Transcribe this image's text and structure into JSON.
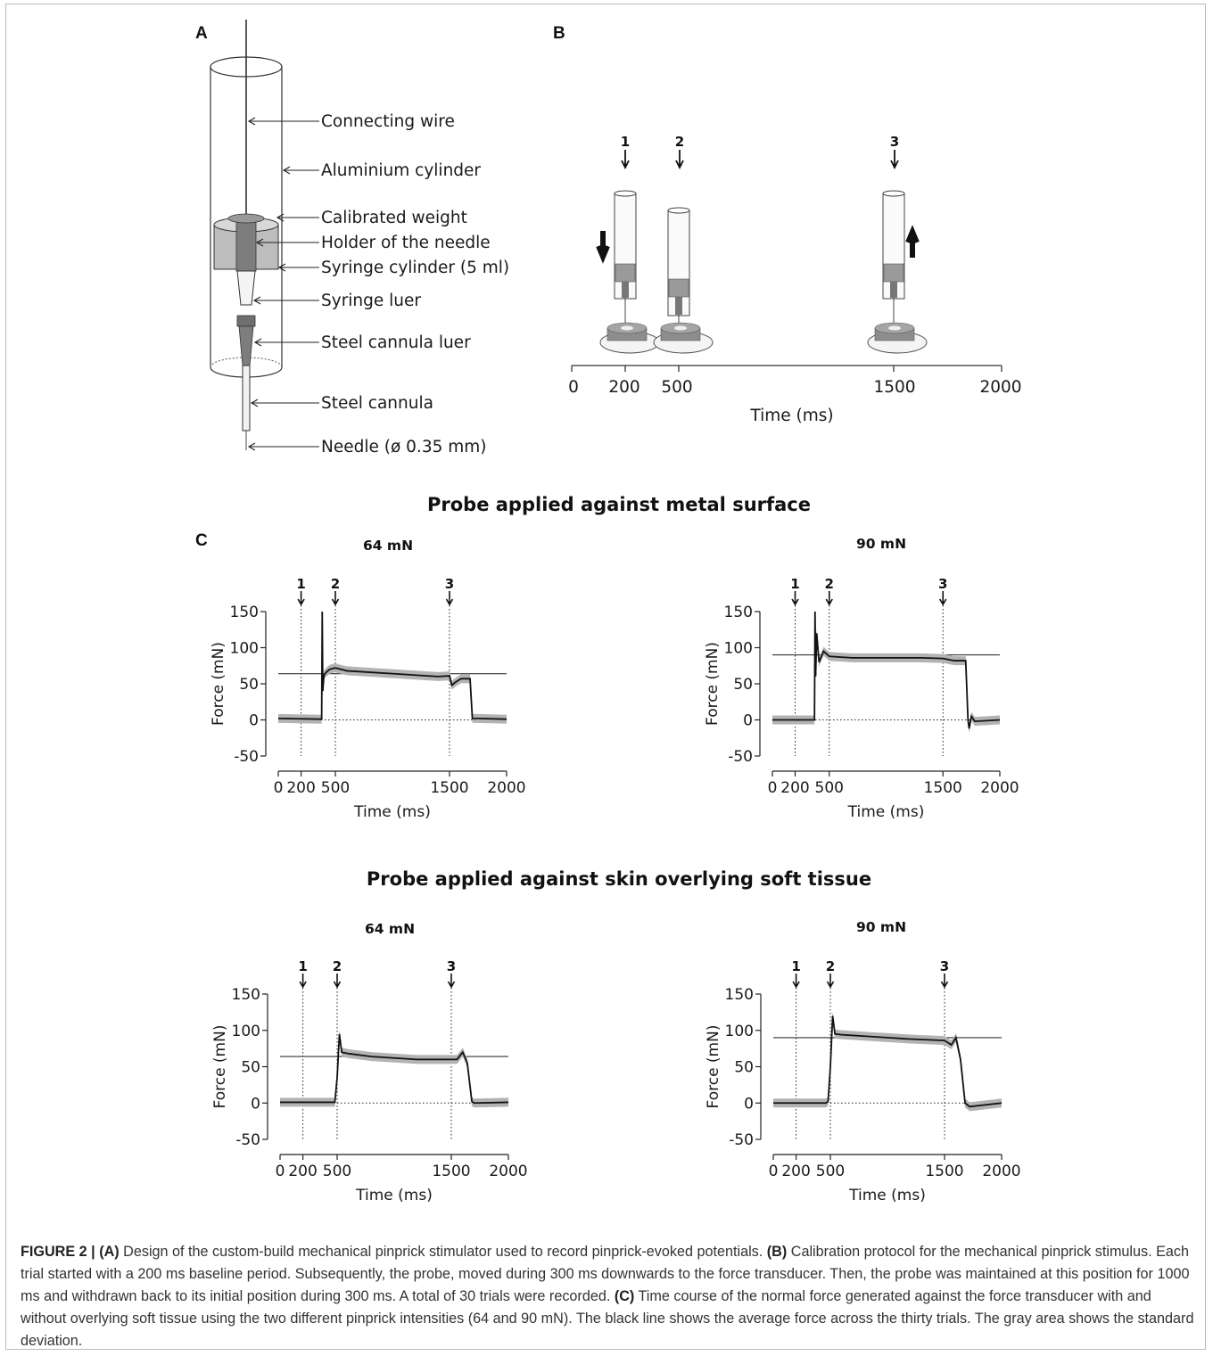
{
  "panels": {
    "a": "A",
    "b": "B",
    "c": "C"
  },
  "stimulator_labels": [
    "Connecting wire",
    "Aluminium cylinder",
    "Calibrated weight",
    "Holder of the needle",
    "Syringe cylinder (5 ml)",
    "Syringe luer",
    "Steel cannula luer",
    "Steel cannula",
    "Needle (ø 0.35 mm)"
  ],
  "protocol": {
    "events": [
      "1",
      "2",
      "3"
    ],
    "ticks": [
      "0",
      "200",
      "500",
      "1500",
      "2000"
    ],
    "xlabel": "Time (ms)"
  },
  "section_titles": {
    "metal": "Probe applied against metal surface",
    "skin": "Probe applied against skin overlying soft tissue"
  },
  "chart_data": [
    {
      "type": "line",
      "condition": "metal surface",
      "title": "64 mN",
      "xlabel": "Time (ms)",
      "ylabel": "Force (mN)",
      "xlim": [
        0,
        2000
      ],
      "ylim": [
        -50,
        150
      ],
      "xticks": [
        "0",
        "200",
        "500",
        "1500",
        "2000"
      ],
      "yticks": [
        "150",
        "100",
        "50",
        "0",
        "-50"
      ],
      "target_force": 64,
      "events": [
        {
          "label": "1",
          "x": 200
        },
        {
          "label": "2",
          "x": 500
        },
        {
          "label": "3",
          "x": 1500
        }
      ],
      "x": [
        0,
        380,
        385,
        390,
        400,
        420,
        450,
        500,
        600,
        800,
        1000,
        1200,
        1400,
        1500,
        1520,
        1550,
        1600,
        1680,
        1700,
        1750,
        2000
      ],
      "y": [
        2,
        1,
        150,
        40,
        62,
        66,
        70,
        72,
        68,
        66,
        64,
        62,
        60,
        61,
        48,
        52,
        57,
        57,
        2,
        2,
        1
      ]
    },
    {
      "type": "line",
      "condition": "metal surface",
      "title": "90 mN",
      "xlabel": "Time (ms)",
      "ylabel": "Force (mN)",
      "xlim": [
        0,
        2000
      ],
      "ylim": [
        -50,
        150
      ],
      "xticks": [
        "0",
        "200",
        "500",
        "1500",
        "2000"
      ],
      "yticks": [
        "150",
        "100",
        "50",
        "0",
        "-50"
      ],
      "target_force": 90,
      "events": [
        {
          "label": "1",
          "x": 200
        },
        {
          "label": "2",
          "x": 500
        },
        {
          "label": "3",
          "x": 1500
        }
      ],
      "x": [
        0,
        370,
        375,
        380,
        390,
        410,
        450,
        500,
        700,
        1000,
        1300,
        1500,
        1600,
        1700,
        1720,
        1730,
        1750,
        1780,
        2000
      ],
      "y": [
        0,
        0,
        150,
        60,
        120,
        80,
        95,
        88,
        86,
        86,
        86,
        85,
        82,
        82,
        0,
        -12,
        5,
        -2,
        0
      ]
    },
    {
      "type": "line",
      "condition": "skin overlying soft tissue",
      "title": "64 mN",
      "xlabel": "Time (ms)",
      "ylabel": "Force (mN)",
      "xlim": [
        0,
        2000
      ],
      "ylim": [
        -50,
        150
      ],
      "xticks": [
        "0",
        "200",
        "500",
        "1500",
        "2000"
      ],
      "yticks": [
        "150",
        "100",
        "50",
        "0",
        "-50"
      ],
      "target_force": 64,
      "events": [
        {
          "label": "1",
          "x": 200
        },
        {
          "label": "2",
          "x": 500
        },
        {
          "label": "3",
          "x": 1500
        }
      ],
      "x": [
        0,
        480,
        500,
        520,
        540,
        600,
        800,
        1000,
        1200,
        1500,
        1550,
        1600,
        1640,
        1680,
        1700,
        2000
      ],
      "y": [
        1,
        1,
        35,
        95,
        70,
        68,
        64,
        62,
        60,
        60,
        60,
        70,
        55,
        2,
        0,
        1
      ]
    },
    {
      "type": "line",
      "condition": "skin overlying soft tissue",
      "title": "90 mN",
      "xlabel": "Time (ms)",
      "ylabel": "Force (mN)",
      "xlim": [
        0,
        2000
      ],
      "ylim": [
        -50,
        150
      ],
      "xticks": [
        "0",
        "200",
        "500",
        "1500",
        "2000"
      ],
      "yticks": [
        "150",
        "100",
        "50",
        "0",
        "-50"
      ],
      "target_force": 90,
      "events": [
        {
          "label": "1",
          "x": 200
        },
        {
          "label": "2",
          "x": 500
        },
        {
          "label": "3",
          "x": 1500
        }
      ],
      "x": [
        0,
        460,
        480,
        500,
        520,
        540,
        600,
        800,
        1000,
        1200,
        1500,
        1560,
        1600,
        1640,
        1680,
        1720,
        2000
      ],
      "y": [
        0,
        0,
        2,
        50,
        120,
        95,
        94,
        92,
        90,
        88,
        86,
        80,
        90,
        60,
        0,
        -5,
        0
      ]
    }
  ],
  "caption": {
    "figure_label": "FIGURE 2 |",
    "a_label": "(A)",
    "a_text": " Design of the custom-build mechanical pinprick stimulator used to record pinprick-evoked potentials. ",
    "b_label": "(B)",
    "b_text": " Calibration protocol for the mechanical pinprick stimulus. Each trial started with a 200 ms baseline period. Subsequently, the probe, moved during 300 ms downwards to the force transducer. Then, the probe was maintained at this position for 1000 ms and withdrawn back to its initial position during 300 ms. A total of 30 trials were recorded. ",
    "c_label": "(C)",
    "c_text": " Time course of the normal force generated against the force transducer with and without overlying soft tissue using the two different pinprick intensities (64 and 90 mN). The black line shows the average force across the thirty trials. The gray area shows the standard deviation."
  }
}
